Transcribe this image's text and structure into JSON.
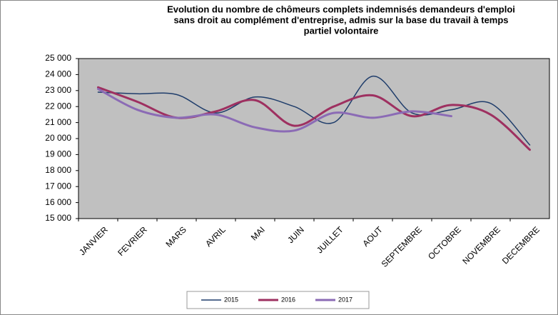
{
  "chart_data": {
    "type": "line",
    "title": [
      "Evolution du nombre de chômeurs complets indemnisés demandeurs d'emploi",
      "sans droit au complément d'entreprise, admis sur la base du travail à temps",
      "partiel volontaire"
    ],
    "categories": [
      "JANVIER",
      "FEVRIER",
      "MARS",
      "AVRIL",
      "MAI",
      "JUIN",
      "JUILLET",
      "AOUT",
      "SEPTEMBRE",
      "OCTOBRE",
      "NOVEMBRE",
      "DECEMBRE"
    ],
    "series": [
      {
        "name": "2015",
        "color": "#1f3d6b",
        "values": [
          22900,
          22800,
          22750,
          21600,
          22600,
          22000,
          21000,
          23900,
          21600,
          21800,
          22200,
          19600
        ]
      },
      {
        "name": "2016",
        "color": "#9e3060",
        "values": [
          23200,
          22300,
          21300,
          21700,
          22400,
          20800,
          22000,
          22700,
          21400,
          22100,
          21500,
          19300
        ]
      },
      {
        "name": "2017",
        "color": "#8b6bb5",
        "values": [
          23100,
          21800,
          21300,
          21500,
          20700,
          20500,
          21600,
          21300,
          21700,
          21400,
          null,
          null
        ]
      }
    ],
    "ylim": [
      15000,
      25000
    ],
    "yticks": [
      {
        "value": 15000,
        "label": "15 000"
      },
      {
        "value": 16000,
        "label": "16 000"
      },
      {
        "value": 17000,
        "label": "17 000"
      },
      {
        "value": 18000,
        "label": "18 000"
      },
      {
        "value": 19000,
        "label": "19 000"
      },
      {
        "value": 20000,
        "label": "20 000"
      },
      {
        "value": 21000,
        "label": "21 000"
      },
      {
        "value": 22000,
        "label": "22 000"
      },
      {
        "value": 23000,
        "label": "23 000"
      },
      {
        "value": 24000,
        "label": "24 000"
      },
      {
        "value": 25000,
        "label": "25 000"
      }
    ],
    "legend": "bottom"
  }
}
